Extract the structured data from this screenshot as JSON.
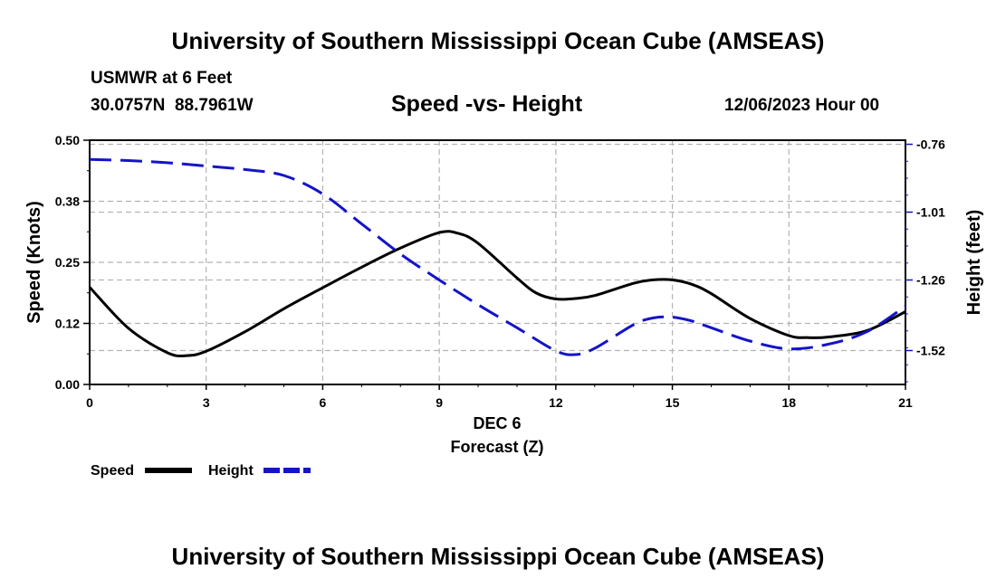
{
  "header": {
    "title": "University of Southern Mississippi Ocean Cube (AMSEAS)",
    "station": "USMWR at 6 Feet",
    "coords": "30.0757N  88.7961W",
    "subtitle": "Speed -vs- Height",
    "datetime": "12/06/2023 Hour 00"
  },
  "footer": {
    "title": "University of Southern Mississippi Ocean Cube (AMSEAS)"
  },
  "colors": {
    "speed": "#000000",
    "height": "#1414c8",
    "grid": "#b4b4b4"
  },
  "chart_data": {
    "type": "line",
    "title": "Speed -vs- Height",
    "xlabel_date": "DEC 6",
    "xlabel": "Forecast (Z)",
    "ylabel": "Speed (Knots)",
    "y2label": "Height (feet)",
    "xlim": [
      0,
      21
    ],
    "ylim": [
      0,
      0.5
    ],
    "y2lim": [
      -1.645,
      -0.745
    ],
    "x_ticks": [
      "0",
      "3",
      "6",
      "9",
      "12",
      "15",
      "18",
      "21"
    ],
    "y_ticks": [
      {
        "value": 0.0,
        "label": "0.00"
      },
      {
        "value": 0.125,
        "label": "0.12"
      },
      {
        "value": 0.25,
        "label": "0.25"
      },
      {
        "value": 0.375,
        "label": "0.38"
      },
      {
        "value": 0.5,
        "label": "0.50"
      }
    ],
    "y2_ticks": [
      {
        "value": -0.76,
        "label": "-0.76"
      },
      {
        "value": -1.01,
        "label": "-1.01"
      },
      {
        "value": -1.26,
        "label": "-1.26"
      },
      {
        "value": -1.52,
        "label": "-1.52"
      }
    ],
    "series": [
      {
        "name": "Speed",
        "axis": "left",
        "style": "solid",
        "x": [
          0,
          1,
          2,
          2.5,
          3,
          4,
          5,
          6,
          7,
          8,
          9,
          9.5,
          10,
          11,
          11.5,
          12,
          12.5,
          13,
          14,
          14.5,
          15,
          15.5,
          16,
          17,
          18,
          18.5,
          19,
          20,
          21
        ],
        "values": [
          0.199,
          0.115,
          0.065,
          0.059,
          0.068,
          0.108,
          0.155,
          0.198,
          0.24,
          0.279,
          0.311,
          0.309,
          0.289,
          0.218,
          0.187,
          0.175,
          0.176,
          0.182,
          0.207,
          0.214,
          0.214,
          0.205,
          0.186,
          0.135,
          0.1,
          0.096,
          0.097,
          0.11,
          0.149
        ]
      },
      {
        "name": "Height",
        "axis": "right",
        "style": "dashed",
        "x": [
          0,
          1,
          2,
          3,
          4,
          5,
          6,
          7,
          8,
          9,
          10,
          11,
          12,
          12.5,
          13,
          14,
          14.5,
          15,
          15.5,
          16,
          17,
          18,
          19,
          20,
          21
        ],
        "values": [
          -0.816,
          -0.82,
          -0.828,
          -0.84,
          -0.853,
          -0.875,
          -0.943,
          -1.053,
          -1.164,
          -1.26,
          -1.351,
          -1.436,
          -1.521,
          -1.535,
          -1.512,
          -1.425,
          -1.4,
          -1.397,
          -1.411,
          -1.436,
          -1.485,
          -1.514,
          -1.497,
          -1.451,
          -1.357
        ]
      }
    ],
    "legend": [
      {
        "label": "Speed",
        "style": "solid"
      },
      {
        "label": "Height",
        "style": "dashed"
      }
    ]
  }
}
